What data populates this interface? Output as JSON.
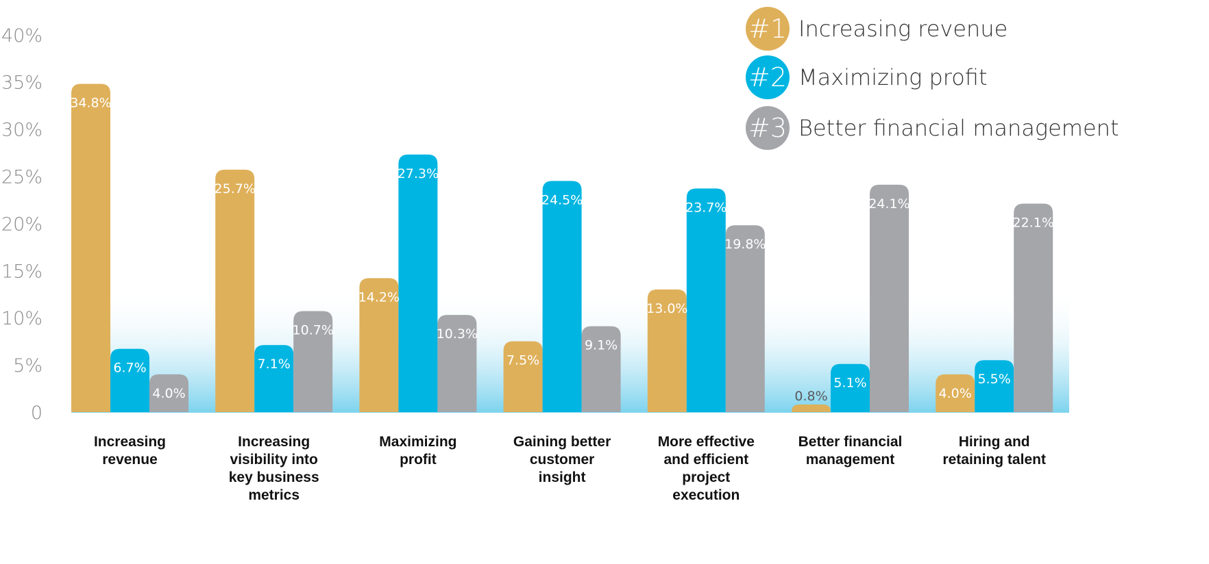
{
  "chart_data": {
    "type": "bar",
    "title": "",
    "xlabel": "",
    "ylabel": "",
    "ylim": [
      0,
      40
    ],
    "yticks": [
      {
        "value": 0,
        "label": "0"
      },
      {
        "value": 5,
        "label": "5%"
      },
      {
        "value": 10,
        "label": "10%"
      },
      {
        "value": 15,
        "label": "15%"
      },
      {
        "value": 20,
        "label": "20%"
      },
      {
        "value": 25,
        "label": "25%"
      },
      {
        "value": 30,
        "label": "30%"
      },
      {
        "value": 35,
        "label": "35%"
      },
      {
        "value": 40,
        "label": "40%"
      }
    ],
    "categories": [
      [
        "Increasing",
        "revenue"
      ],
      [
        "Increasing",
        "visibility into",
        "key business",
        "metrics"
      ],
      [
        "Maximizing",
        "profit"
      ],
      [
        "Gaining better",
        "customer",
        "insight"
      ],
      [
        "More effective",
        "and efficient",
        "project",
        "execution"
      ],
      [
        "Better financial",
        "management"
      ],
      [
        "Hiring and",
        "retaining talent"
      ]
    ],
    "series": [
      {
        "name": "Increasing revenue",
        "rank": "#1",
        "color": "#dfb05a",
        "values": [
          34.8,
          25.7,
          14.2,
          7.5,
          13.0,
          0.8,
          4.0
        ],
        "labels": [
          "34.8%",
          "25.7%",
          "14.2%",
          "7.5%",
          "13.0%",
          "0.8%",
          "4.0%"
        ]
      },
      {
        "name": "Maximizing profit",
        "rank": "#2",
        "color": "#00b5e2",
        "values": [
          6.7,
          7.1,
          27.3,
          24.5,
          23.7,
          5.1,
          5.5
        ],
        "labels": [
          "6.7%",
          "7.1%",
          "27.3%",
          "24.5%",
          "23.7%",
          "5.1%",
          "5.5%"
        ]
      },
      {
        "name": "Better financial management",
        "rank": "#3",
        "color": "#a5a6aa",
        "values": [
          4.0,
          10.7,
          10.3,
          9.1,
          19.8,
          24.1,
          22.1
        ],
        "labels": [
          "4.0%",
          "10.7%",
          "10.3%",
          "9.1%",
          "19.8%",
          "24.1%",
          "22.1%"
        ]
      }
    ],
    "legend": "top-right",
    "grid": false
  }
}
